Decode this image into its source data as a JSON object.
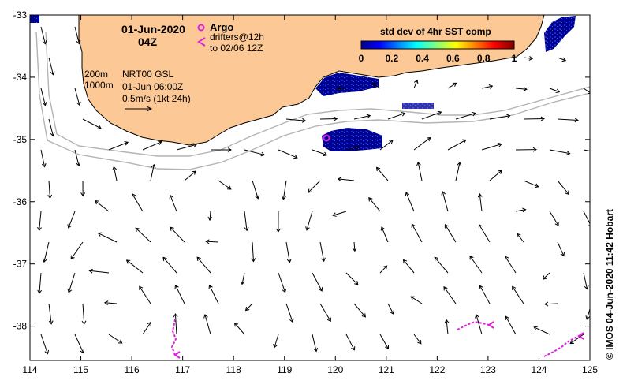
{
  "map": {
    "date_line1": "01-Jun-2020",
    "date_line2": "04Z",
    "argo_label": "Argo",
    "drifters_line1": "drifters@12h",
    "drifters_line2": "to 02/06 12Z",
    "contour_200": "200m",
    "contour_1000": "1000m",
    "product_line1": "NRT00 GSL",
    "product_line2": "01-Jun 06:00Z",
    "scale_label": "0.5m/s (1kt 24h)",
    "colorbar_title": "std dev of 4hr SST comp",
    "colorbar_ticks": [
      "0",
      "0.2",
      "0.4",
      "0.6",
      "0.8",
      "1"
    ],
    "credit": "© IMOS 04-Jun-2020 11:42 Hobart",
    "x_ticks": [
      "114",
      "115",
      "116",
      "117",
      "118",
      "119",
      "120",
      "121",
      "122",
      "123",
      "124",
      "125"
    ],
    "y_ticks": [
      "-33",
      "-34",
      "-35",
      "-36",
      "-37",
      "-38"
    ],
    "land_color": "#fcc896",
    "argo_color": "#e020e0",
    "drifter_color": "#e020e0",
    "sst_color": "#000090"
  }
}
